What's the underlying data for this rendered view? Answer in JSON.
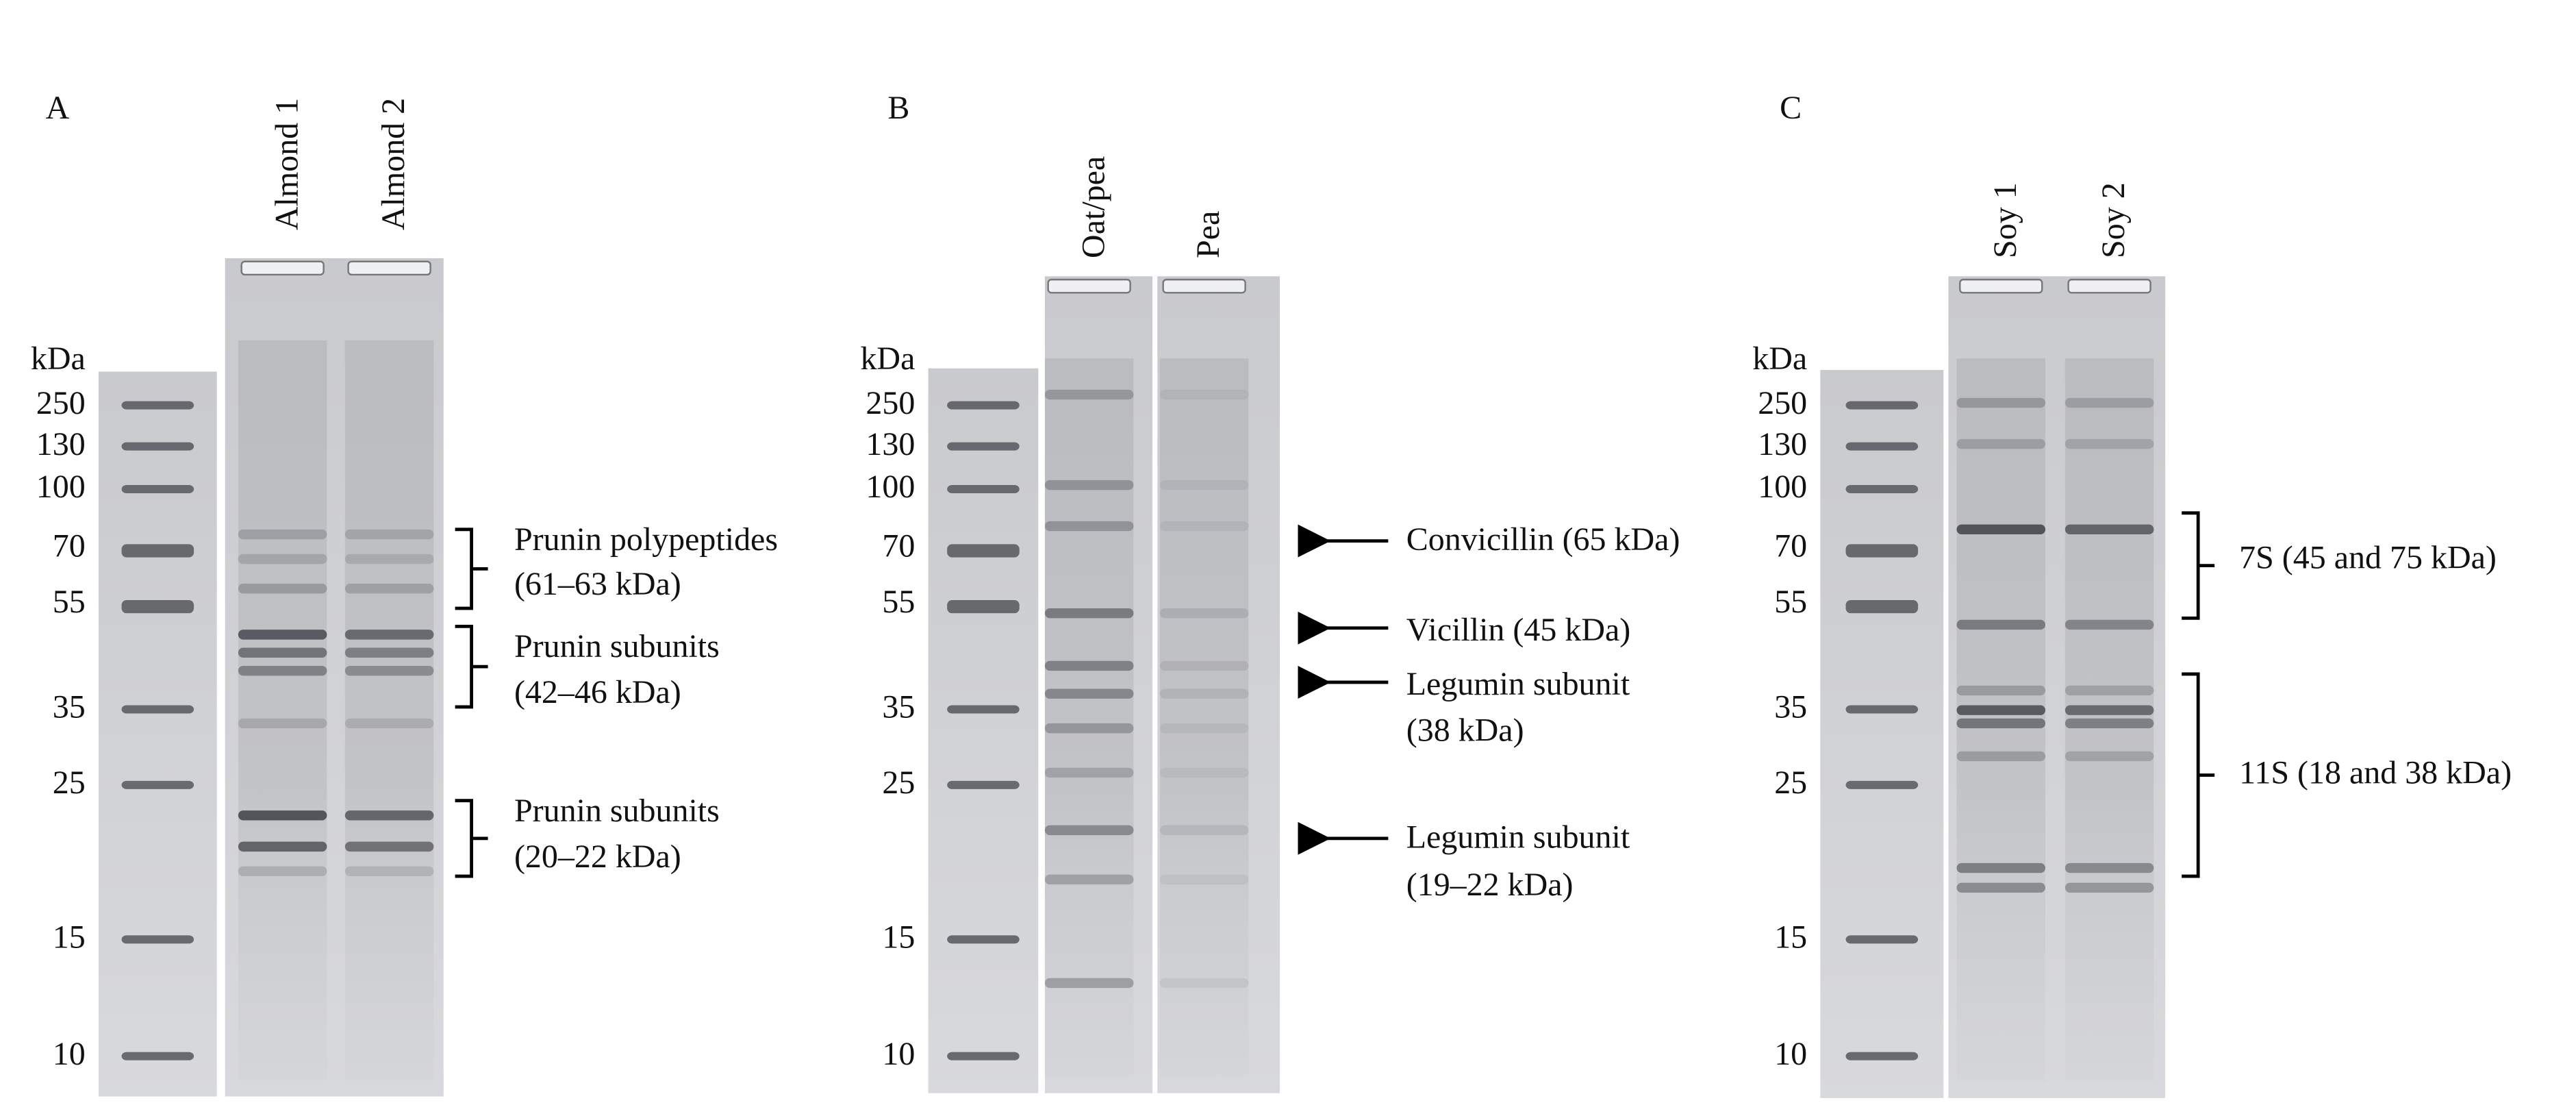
{
  "panels": [
    {
      "label": "A",
      "lanes": [
        "Almond 1",
        "Almond 2"
      ],
      "marker_unit": "kDa",
      "markers": [
        "250",
        "130",
        "100",
        "70",
        "55",
        "35",
        "25",
        "15",
        "10"
      ],
      "annotations": [
        {
          "lines": [
            "Prunin polypeptides",
            "(61–63 kDa)"
          ]
        },
        {
          "lines": [
            "Prunin subunits",
            "(42–46 kDa)"
          ]
        },
        {
          "lines": [
            "Prunin subunits",
            "(20–22 kDa)"
          ]
        }
      ]
    },
    {
      "label": "B",
      "lanes": [
        "Oat/pea",
        "Pea"
      ],
      "marker_unit": "kDa",
      "markers": [
        "250",
        "130",
        "100",
        "70",
        "55",
        "35",
        "25",
        "15",
        "10"
      ],
      "annotations": [
        {
          "lines": [
            "Convicillin (65 kDa)"
          ]
        },
        {
          "lines": [
            "Vicillin (45 kDa)"
          ]
        },
        {
          "lines": [
            "Legumin subunit",
            "(38 kDa)"
          ]
        },
        {
          "lines": [
            "Legumin subunit",
            "(19–22 kDa)"
          ]
        }
      ]
    },
    {
      "label": "C",
      "lanes": [
        "Soy 1",
        "Soy 2"
      ],
      "marker_unit": "kDa",
      "markers": [
        "250",
        "130",
        "100",
        "70",
        "55",
        "35",
        "25",
        "15",
        "10"
      ],
      "annotations": [
        {
          "lines": [
            "7S (45 and 75 kDa)"
          ]
        },
        {
          "lines": [
            "11S (18 and 38 kDa)"
          ]
        }
      ]
    }
  ]
}
